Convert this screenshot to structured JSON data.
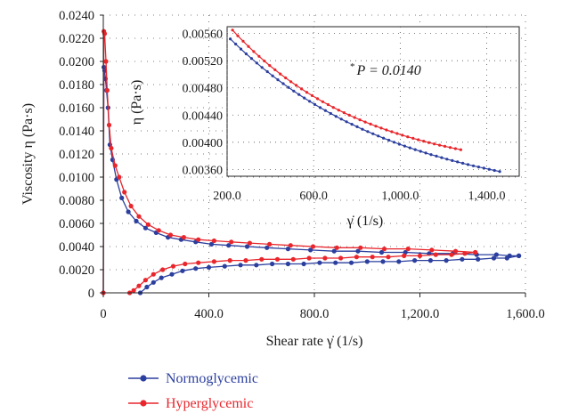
{
  "chart_data": {
    "type": "line",
    "main": {
      "xlabel": "Shear rate γ̇ (1/s)",
      "ylabel": "Viscosity η (Pa·s)",
      "xlim": [
        0,
        1600
      ],
      "ylim": [
        0,
        0.024
      ],
      "x_ticks": [
        "0",
        "400.0",
        "800.0",
        "1,200.0",
        "1,600.0"
      ],
      "x_tick_values": [
        0,
        400,
        800,
        1200,
        1600
      ],
      "y_ticks": [
        "0",
        "0.0020",
        "0.0040",
        "0.0060",
        "0.0080",
        "0.0100",
        "0.0120",
        "0.0140",
        "0.0160",
        "0.0180",
        "0.0200",
        "0.0220",
        "0.0240"
      ],
      "y_tick_values": [
        0,
        0.002,
        0.004,
        0.006,
        0.008,
        0.01,
        0.012,
        0.014,
        0.016,
        0.018,
        0.02,
        0.022,
        0.024
      ],
      "grid": "dotted",
      "series": [
        {
          "name": "Normoglycemic",
          "color": "#2b3f9e",
          "up_x": [
            0,
            2,
            5,
            8,
            12,
            18,
            25,
            35,
            50,
            70,
            95,
            125,
            160,
            200,
            245,
            295,
            350,
            410,
            475,
            545,
            620,
            700,
            785,
            875,
            965,
            1055,
            1145,
            1235,
            1325,
            1415,
            1490,
            1540,
            1575
          ],
          "up_y": [
            0,
            0.0195,
            0.0192,
            0.0185,
            0.0175,
            0.016,
            0.0128,
            0.0115,
            0.0098,
            0.0082,
            0.007,
            0.0062,
            0.0056,
            0.0052,
            0.0048,
            0.0046,
            0.0044,
            0.0042,
            0.0041,
            0.004,
            0.0039,
            0.0038,
            0.0037,
            0.0036,
            0.0036,
            0.0035,
            0.0035,
            0.0034,
            0.0034,
            0.0033,
            0.0033,
            0.0032,
            0.0032
          ],
          "down_x": [
            1575,
            1530,
            1480,
            1420,
            1360,
            1300,
            1240,
            1180,
            1120,
            1060,
            1000,
            940,
            880,
            820,
            760,
            700,
            640,
            580,
            520,
            460,
            400,
            350,
            300,
            260,
            220,
            190,
            165,
            140
          ],
          "down_y": [
            0.0032,
            0.003,
            0.003,
            0.0029,
            0.0029,
            0.0028,
            0.0028,
            0.0028,
            0.0027,
            0.0027,
            0.0027,
            0.0026,
            0.0026,
            0.0026,
            0.0025,
            0.0025,
            0.0025,
            0.0024,
            0.0024,
            0.0023,
            0.0022,
            0.0021,
            0.0019,
            0.0016,
            0.0013,
            0.0009,
            0.0005,
            0
          ]
        },
        {
          "name": "Hyperglycemic",
          "color": "#e8262c",
          "up_x": [
            0,
            2,
            5,
            10,
            15,
            22,
            30,
            45,
            60,
            80,
            105,
            135,
            170,
            210,
            255,
            305,
            360,
            420,
            485,
            555,
            630,
            710,
            795,
            885,
            975,
            1065,
            1155,
            1245,
            1335,
            1410
          ],
          "up_y": [
            0,
            0.0226,
            0.0224,
            0.02,
            0.0175,
            0.0145,
            0.0125,
            0.011,
            0.01,
            0.0087,
            0.0075,
            0.0066,
            0.0059,
            0.0054,
            0.005,
            0.0048,
            0.0046,
            0.0045,
            0.0044,
            0.0043,
            0.0042,
            0.0041,
            0.004,
            0.0039,
            0.0039,
            0.0038,
            0.0038,
            0.0037,
            0.0036,
            0.0035
          ],
          "down_x": [
            1410,
            1370,
            1320,
            1260,
            1200,
            1140,
            1080,
            1020,
            960,
            900,
            840,
            780,
            720,
            660,
            600,
            540,
            480,
            420,
            360,
            310,
            265,
            225,
            190,
            160,
            135,
            115,
            100
          ],
          "down_y": [
            0.0035,
            0.0034,
            0.0033,
            0.0033,
            0.0032,
            0.0032,
            0.0031,
            0.0031,
            0.0031,
            0.003,
            0.003,
            0.003,
            0.0029,
            0.0029,
            0.0029,
            0.0028,
            0.0028,
            0.0027,
            0.0026,
            0.0025,
            0.0023,
            0.002,
            0.0016,
            0.0011,
            0.0006,
            0.0002,
            0
          ]
        }
      ]
    },
    "inset": {
      "xlabel": "γ̇ (1/s)",
      "ylabel": "η (Pa·s)",
      "annotation": "P = 0.0140",
      "annotation_marker": "*",
      "xlim": [
        200,
        1550
      ],
      "ylim": [
        0.0035,
        0.0057
      ],
      "x_ticks": [
        "200.0",
        "600.0",
        "1,000.0",
        "1,400.0"
      ],
      "x_tick_values": [
        200,
        600,
        1000,
        1400
      ],
      "y_ticks": [
        "0.00360",
        "0.00400",
        "0.00440",
        "0.00480",
        "0.00520",
        "0.00560"
      ],
      "y_tick_values": [
        0.0036,
        0.004,
        0.0044,
        0.0048,
        0.0052,
        0.0056
      ],
      "series": [
        {
          "name": "Normoglycemic",
          "color": "#2b3f9e",
          "x0": 215,
          "x1": 1460,
          "y0": 0.00552,
          "y1": 0.00357,
          "k": 1.6,
          "n": 52
        },
        {
          "name": "Hyperglycemic",
          "color": "#e8262c",
          "x0": 225,
          "x1": 1280,
          "y0": 0.00565,
          "y1": 0.00389,
          "k": 1.7,
          "n": 44
        }
      ]
    },
    "legend": {
      "position": "bottom-left",
      "entries": [
        {
          "name": "Normoglycemic",
          "color": "#2b3f9e"
        },
        {
          "name": "Hyperglycemic",
          "color": "#e8262c"
        }
      ]
    }
  }
}
